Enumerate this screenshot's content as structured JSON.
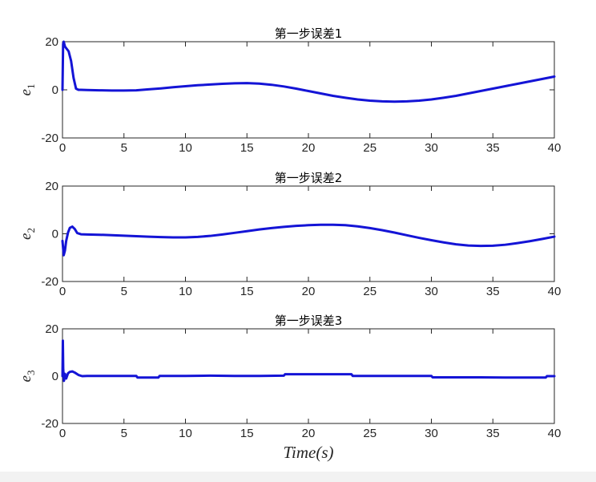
{
  "chart_data": [
    {
      "type": "line",
      "title": "第一步误差1",
      "ylabel": "e",
      "ylabel_sub": "1",
      "xlim": [
        0,
        40
      ],
      "ylim": [
        -20,
        20
      ],
      "xticks": [
        0,
        5,
        10,
        15,
        20,
        25,
        30,
        35,
        40
      ],
      "yticks": [
        -20,
        0,
        20
      ],
      "grid": false,
      "line_color": "#1414d6",
      "series": [
        {
          "x": [
            0,
            0.05,
            0.1,
            0.2,
            0.35,
            0.5,
            0.7,
            0.9,
            1.1,
            1.3,
            1.5,
            2,
            3,
            4,
            5,
            6,
            7,
            8,
            9,
            10,
            11,
            12,
            13,
            14,
            15,
            16,
            17,
            18,
            19,
            20,
            21,
            22,
            23,
            24,
            25,
            26,
            27,
            28,
            29,
            30,
            31,
            32,
            33,
            34,
            35,
            36,
            37,
            38,
            39,
            40
          ],
          "y": [
            0,
            19,
            20,
            18,
            17,
            16,
            12,
            5,
            0.5,
            0,
            0,
            -0.1,
            -0.2,
            -0.3,
            -0.3,
            -0.2,
            0.2,
            0.6,
            1.1,
            1.5,
            1.9,
            2.2,
            2.5,
            2.7,
            2.8,
            2.6,
            2.1,
            1.4,
            0.5,
            -0.5,
            -1.5,
            -2.5,
            -3.3,
            -4.0,
            -4.5,
            -4.8,
            -4.9,
            -4.8,
            -4.5,
            -4.0,
            -3.3,
            -2.5,
            -1.5,
            -0.5,
            0.5,
            1.5,
            2.5,
            3.5,
            4.5,
            5.5
          ]
        }
      ]
    },
    {
      "type": "line",
      "title": "第一步误差2",
      "ylabel": "e",
      "ylabel_sub": "2",
      "xlim": [
        0,
        40
      ],
      "ylim": [
        -20,
        20
      ],
      "xticks": [
        0,
        5,
        10,
        15,
        20,
        25,
        30,
        35,
        40
      ],
      "yticks": [
        -20,
        0,
        20
      ],
      "grid": false,
      "line_color": "#1414d6",
      "series": [
        {
          "x": [
            0,
            0.1,
            0.2,
            0.3,
            0.45,
            0.6,
            0.8,
            1.0,
            1.2,
            1.5,
            2,
            3,
            4,
            5,
            6,
            7,
            8,
            9,
            10,
            11,
            12,
            13,
            14,
            15,
            16,
            17,
            18,
            19,
            20,
            21,
            22,
            23,
            24,
            25,
            26,
            27,
            28,
            29,
            30,
            31,
            32,
            33,
            34,
            35,
            36,
            37,
            38,
            39,
            40
          ],
          "y": [
            -3,
            -9,
            -7,
            -3,
            0.5,
            2.5,
            3,
            2,
            0.3,
            -0.2,
            -0.3,
            -0.4,
            -0.6,
            -0.8,
            -1.0,
            -1.2,
            -1.4,
            -1.5,
            -1.5,
            -1.3,
            -0.9,
            -0.3,
            0.4,
            1.1,
            1.8,
            2.4,
            2.9,
            3.3,
            3.6,
            3.8,
            3.8,
            3.6,
            3.1,
            2.4,
            1.5,
            0.5,
            -0.6,
            -1.7,
            -2.7,
            -3.6,
            -4.4,
            -4.9,
            -5.1,
            -5.0,
            -4.6,
            -3.9,
            -3.1,
            -2.2,
            -1.2
          ]
        }
      ]
    },
    {
      "type": "line",
      "title": "第一步误差3",
      "ylabel": "e",
      "ylabel_sub": "3",
      "xlabel": "Time(s)",
      "xlim": [
        0,
        40
      ],
      "ylim": [
        -20,
        20
      ],
      "xticks": [
        0,
        5,
        10,
        15,
        20,
        25,
        30,
        35,
        40
      ],
      "yticks": [
        -20,
        0,
        20
      ],
      "grid": false,
      "line_color": "#1414d6",
      "series": [
        {
          "x": [
            0,
            0.03,
            0.06,
            0.12,
            0.2,
            0.3,
            0.45,
            0.6,
            0.8,
            1.0,
            1.3,
            1.6,
            2,
            4,
            6,
            6.1,
            7.8,
            7.9,
            10,
            12,
            14,
            16,
            18,
            18.1,
            20,
            22,
            23.5,
            23.6,
            26,
            28,
            30,
            30.1,
            32,
            34,
            36,
            38,
            39.3,
            39.4,
            40
          ],
          "y": [
            0,
            15,
            3,
            -2,
            1,
            -1,
            1.2,
            1.8,
            2,
            1.5,
            0.5,
            0,
            0.1,
            0.1,
            0.1,
            -0.6,
            -0.6,
            0.1,
            0.1,
            0.2,
            0.1,
            0.1,
            0.2,
            0.8,
            0.8,
            0.8,
            0.8,
            0.1,
            0.1,
            0.1,
            0.1,
            -0.5,
            -0.5,
            -0.5,
            -0.6,
            -0.6,
            -0.6,
            0,
            0
          ]
        }
      ]
    }
  ]
}
